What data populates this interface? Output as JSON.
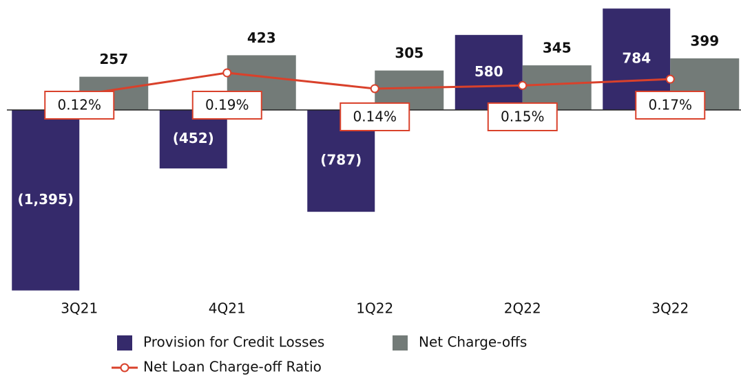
{
  "chart_data": {
    "type": "bar",
    "categories": [
      "3Q21",
      "4Q21",
      "1Q22",
      "2Q22",
      "3Q22"
    ],
    "series": [
      {
        "name": "Provision for Credit Losses",
        "color": "#352a6b",
        "values": [
          -1395,
          -452,
          -787,
          580,
          784
        ],
        "value_labels": [
          "(1,395)",
          "(452)",
          "(787)",
          "580",
          "784"
        ]
      },
      {
        "name": "Net Charge-offs",
        "color": "#737b78",
        "values": [
          257,
          423,
          305,
          345,
          399
        ]
      },
      {
        "name": "Net Loan Charge-off Ratio",
        "type": "line",
        "axis": "y2",
        "color": "#d9412b",
        "values": [
          0.12,
          0.19,
          0.14,
          0.15,
          0.17
        ],
        "value_labels": [
          "0.12%",
          "0.19%",
          "0.14%",
          "0.15%",
          "0.17%"
        ]
      }
    ],
    "ylim": [
      -1450,
      850
    ],
    "y2lim": [
      -0.52,
      0.42
    ]
  }
}
